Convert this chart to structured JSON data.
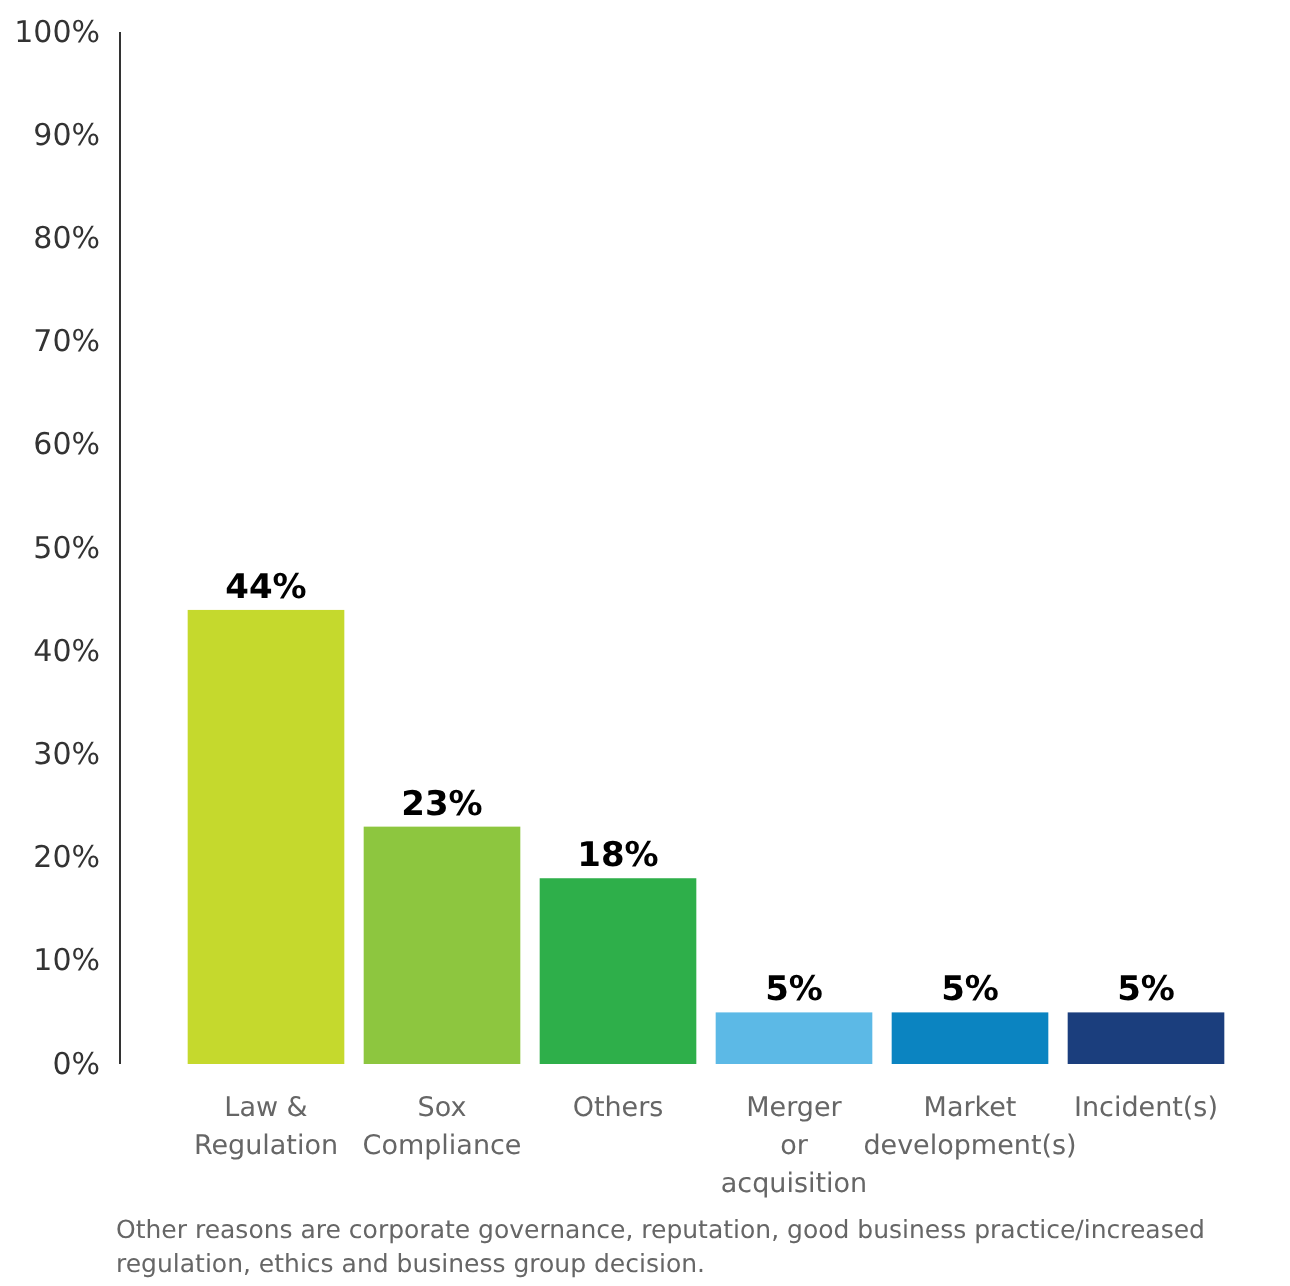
{
  "chart_data": {
    "type": "bar",
    "categories": [
      "Law & Regulation",
      "Sox Compliance",
      "Others",
      "Merger or acquisition",
      "Market development(s)",
      "Incident(s)"
    ],
    "values": [
      44,
      23,
      18,
      5,
      5,
      5
    ],
    "colors": [
      "#c5d92d",
      "#8dc63f",
      "#2eaf4a",
      "#5cb9e6",
      "#0b84c1",
      "#1b3e7d"
    ],
    "ylim": [
      0,
      100
    ],
    "yticks": [
      {
        "value": 0,
        "label": "0%"
      },
      {
        "value": 10,
        "label": "10%"
      },
      {
        "value": 20,
        "label": "20%"
      },
      {
        "value": 30,
        "label": "30%"
      },
      {
        "value": 40,
        "label": "40%"
      },
      {
        "value": 50,
        "label": "50%"
      },
      {
        "value": 60,
        "label": "60%"
      },
      {
        "value": 70,
        "label": "70%"
      },
      {
        "value": 80,
        "label": "80%"
      },
      {
        "value": 90,
        "label": "90%"
      },
      {
        "value": 100,
        "label": "100%"
      }
    ],
    "value_labels": [
      "44%",
      "23%",
      "18%",
      "5%",
      "5%",
      "5%"
    ],
    "annotations": [
      "Other reasons are corporate governance, reputation, good business practice/increased regulation, ethics and business group decision."
    ]
  }
}
